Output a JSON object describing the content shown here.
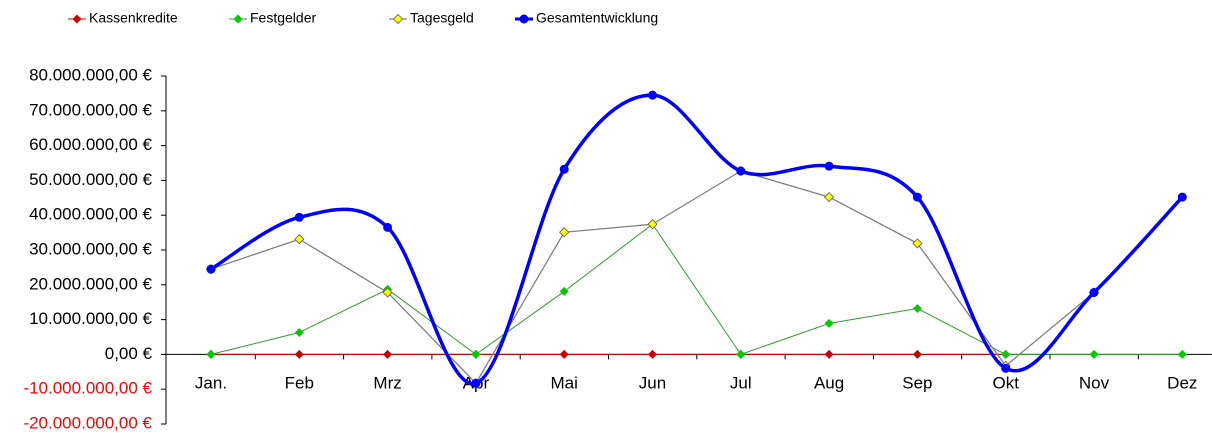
{
  "chart_data": {
    "type": "line",
    "categories": [
      "Jan.",
      "Feb",
      "Mrz",
      "Apr",
      "Mai",
      "Jun",
      "Jul",
      "Aug",
      "Sep",
      "Okt",
      "Nov",
      "Dez"
    ],
    "series": [
      {
        "name": "Kassenkredite",
        "color": "#cc0000",
        "marker_fill": "#cc0000",
        "marker": "diamond",
        "width": 1,
        "values": [
          0,
          0,
          0,
          0,
          0,
          0,
          0,
          0,
          0,
          0,
          null,
          null
        ]
      },
      {
        "name": "Festgelder",
        "color": "#339933",
        "marker_fill": "#00cc00",
        "marker": "diamond",
        "width": 1,
        "values": [
          0,
          6300000,
          18700000,
          0,
          18100000,
          37400000,
          0,
          8900000,
          13200000,
          0,
          0,
          0
        ]
      },
      {
        "name": "Tagesgeld",
        "color": "#808080",
        "marker_fill": "#ffff00",
        "marker": "diamond",
        "width": 1.3,
        "values": [
          24500000,
          33100000,
          17800000,
          -8300000,
          35100000,
          37400000,
          52700000,
          45200000,
          31900000,
          -3300000,
          17800000,
          null
        ]
      },
      {
        "name": "Gesamtentwicklung",
        "color": "#0000ff",
        "marker_fill": "#0000ff",
        "marker": "circle",
        "width": 3.5,
        "smooth": true,
        "values": [
          24500000,
          39400000,
          36500000,
          -8300000,
          53200000,
          74500000,
          52700000,
          54100000,
          45200000,
          -4000000,
          17800000,
          45200000
        ]
      }
    ],
    "ylim": [
      -20000000,
      80000000
    ],
    "yticks": [
      {
        "value": -20000000,
        "label": "-20.000.000,00 €"
      },
      {
        "value": -10000000,
        "label": "-10.000.000,00 €"
      },
      {
        "value": 0,
        "label": "0,00 €"
      },
      {
        "value": 10000000,
        "label": "10.000.000,00 €"
      },
      {
        "value": 20000000,
        "label": "20.000.000,00 €"
      },
      {
        "value": 30000000,
        "label": "30.000.000,00 €"
      },
      {
        "value": 40000000,
        "label": "40.000.000,00 €"
      },
      {
        "value": 50000000,
        "label": "50.000.000,00 €"
      },
      {
        "value": 60000000,
        "label": "60.000.000,00 €"
      },
      {
        "value": 70000000,
        "label": "70.000.000,00 €"
      },
      {
        "value": 80000000,
        "label": "80.000.000,00 €"
      }
    ],
    "negative_tick_color": "#ff0000",
    "legend": "top"
  }
}
